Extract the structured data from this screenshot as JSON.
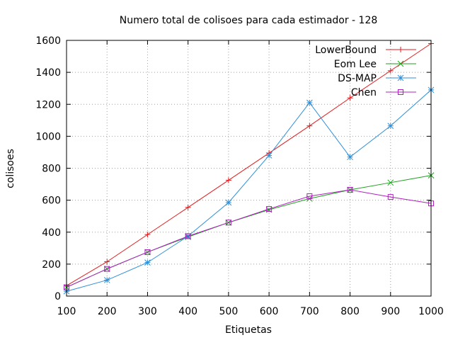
{
  "chart_data": {
    "type": "line",
    "title": "Numero total de colisoes para cada estimador - 128",
    "xlabel": "Etiquetas",
    "ylabel": "colisoes",
    "x": [
      100,
      200,
      300,
      400,
      500,
      600,
      700,
      800,
      900,
      1000
    ],
    "xlim": [
      100,
      1000
    ],
    "ylim": [
      0,
      1600
    ],
    "xticks": [
      100,
      200,
      300,
      400,
      500,
      600,
      700,
      800,
      900,
      1000
    ],
    "yticks": [
      0,
      200,
      400,
      600,
      800,
      1000,
      1200,
      1400,
      1600
    ],
    "grid": true,
    "legend_position": "top-right",
    "series": [
      {
        "name": "LowerBound",
        "color": "#e41a1c",
        "marker": "plus",
        "values": [
          65,
          215,
          385,
          555,
          725,
          895,
          1065,
          1240,
          1410,
          1580
        ]
      },
      {
        "name": "Eom Lee",
        "color": "#1fa01f",
        "marker": "cross",
        "values": [
          55,
          170,
          275,
          370,
          460,
          540,
          610,
          665,
          710,
          755
        ]
      },
      {
        "name": "DS-MAP",
        "color": "#2f8fd8",
        "marker": "star",
        "values": [
          30,
          100,
          210,
          375,
          585,
          880,
          1210,
          870,
          1065,
          1290
        ]
      },
      {
        "name": "Chen",
        "color": "#b020c0",
        "marker": "square",
        "values": [
          55,
          170,
          275,
          375,
          460,
          545,
          625,
          665,
          620,
          580
        ]
      }
    ]
  }
}
